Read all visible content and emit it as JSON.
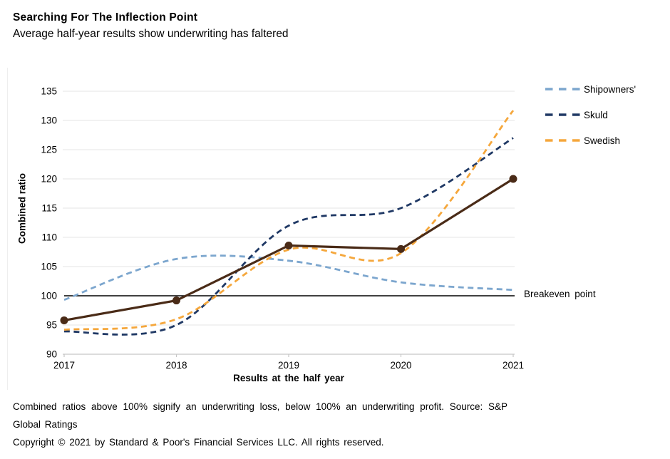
{
  "header": {
    "title": "Searching For The Inflection Point",
    "subtitle": "Average half-year results show underwriting has faltered"
  },
  "chart_data": {
    "type": "line",
    "x": [
      2017,
      2018,
      2019,
      2020,
      2021
    ],
    "xlabel": "Results at the half year",
    "ylabel": "Combined ratio",
    "ylim": [
      90,
      135
    ],
    "ytick_step": 5,
    "grid": true,
    "legend_position": "right",
    "series": [
      {
        "key": "shipowners",
        "name": "Shipowners'",
        "values": [
          99.3,
          106.3,
          106.0,
          102.3,
          101.0
        ],
        "color": "#7CA6CE",
        "line_style": "dashed",
        "smooth": true,
        "markers": false,
        "in_legend": true
      },
      {
        "key": "skuld",
        "name": "Skuld",
        "values": [
          93.9,
          95.0,
          112.0,
          115.0,
          127.0
        ],
        "color": "#1F3864",
        "line_style": "dashed",
        "smooth": true,
        "markers": false,
        "in_legend": true
      },
      {
        "key": "swedish",
        "name": "Swedish",
        "values": [
          94.2,
          96.0,
          107.9,
          107.3,
          131.7
        ],
        "color": "#F5A73C",
        "line_style": "dashed",
        "smooth": true,
        "markers": false,
        "in_legend": true
      },
      {
        "key": "average-brown",
        "name": "Unlabeled average (brown, marked)",
        "values": [
          95.8,
          99.2,
          108.6,
          108.0,
          120.0
        ],
        "color": "#4A2B17",
        "line_style": "solid",
        "smooth": false,
        "markers": true,
        "in_legend": false
      }
    ],
    "reference_line": {
      "value": 100,
      "label": "Breakeven point",
      "color": "#000000"
    },
    "axis_color": "#C6C6C6",
    "grid_color": "#E6E6E6"
  },
  "footer": {
    "note": "Combined ratios above 100% signify an underwriting loss, below 100% an underwriting profit. Source: S&P Global Ratings",
    "copyright": "Copyright © 2021 by Standard & Poor's Financial Services LLC. All rights reserved."
  }
}
